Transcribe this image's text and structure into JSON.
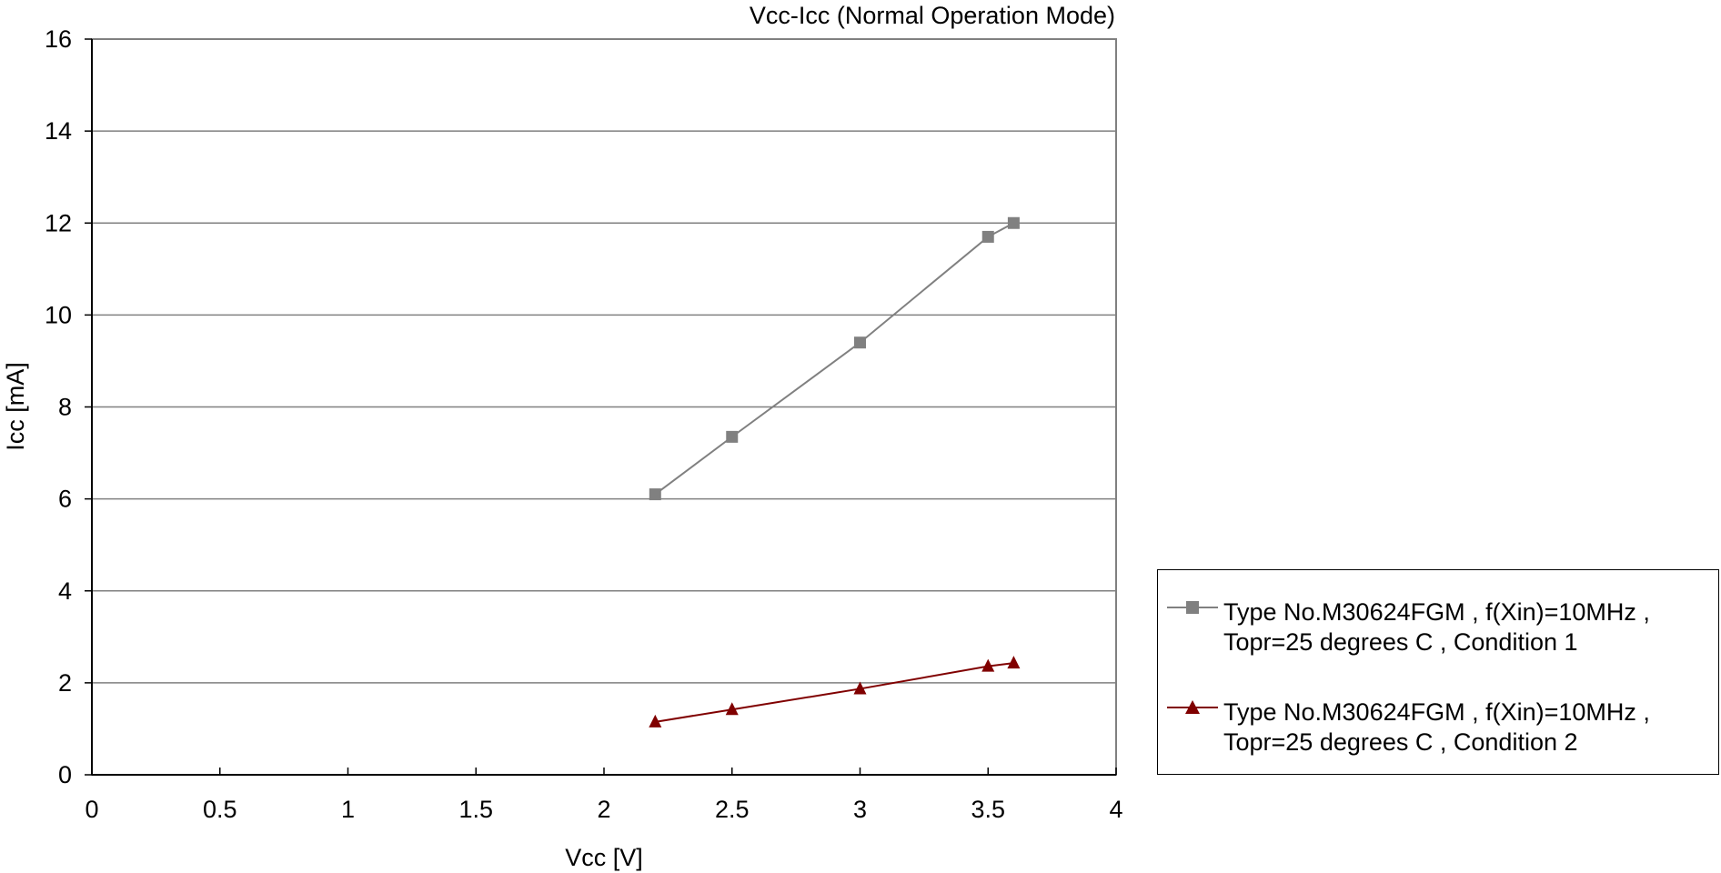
{
  "chart_data": {
    "type": "line",
    "title": "Vcc-Icc (Normal Operation Mode)",
    "xlabel": "Vcc [V]",
    "ylabel": "Icc [mA]",
    "xlim": [
      0,
      4
    ],
    "ylim": [
      0,
      16
    ],
    "x_ticks": [
      "0",
      "0.5",
      "1",
      "1.5",
      "2",
      "2.5",
      "3",
      "3.5",
      "4"
    ],
    "y_ticks": [
      "0",
      "2",
      "4",
      "6",
      "8",
      "10",
      "12",
      "14",
      "16"
    ],
    "grid": "horizontal",
    "legend_position": "right",
    "series": [
      {
        "name": "Type No.M30624FGM  , f(Xin)=10MHz  , Topr=25 degrees C  , Condition 1",
        "marker": "square",
        "color": "#808080",
        "x": [
          2.2,
          2.5,
          3.0,
          3.5,
          3.6
        ],
        "y": [
          6.1,
          7.35,
          9.4,
          11.7,
          12.0
        ]
      },
      {
        "name": "Type No.M30624FGM  , f(Xin)=10MHz  , Topr=25 degrees C  , Condition 2",
        "marker": "triangle",
        "color": "#800000",
        "x": [
          2.2,
          2.5,
          3.0,
          3.5,
          3.6
        ],
        "y": [
          1.15,
          1.42,
          1.87,
          2.36,
          2.43
        ]
      }
    ]
  }
}
